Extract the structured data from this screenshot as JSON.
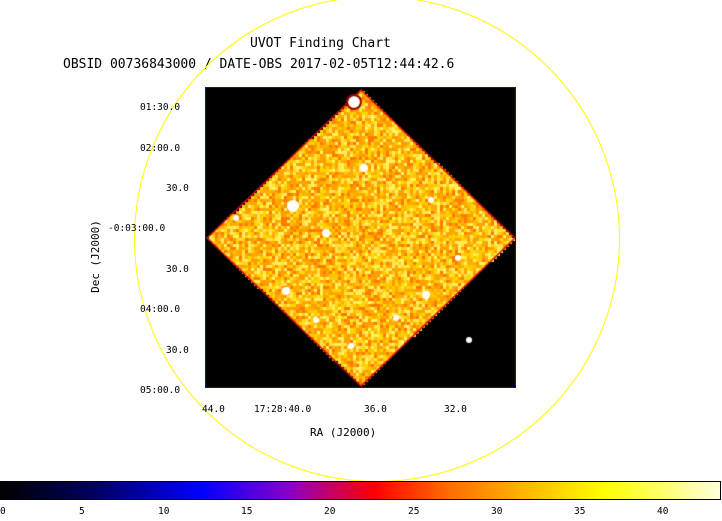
{
  "chart": {
    "title": "UVOT Finding Chart",
    "subtitle": "OBSID 00736843000 / DATE-OBS 2017-02-05T12:44:42.6",
    "xlabel": "RA (J2000)",
    "ylabel": "Dec (J2000)",
    "ra_ticks": [
      "44.0",
      "17:28:40.0",
      "36.0",
      "32.0"
    ],
    "dec_ticks": [
      "01:30.0",
      "02:00.0",
      "30.0",
      "-0:03:00.0",
      "30.0",
      "04:00.0",
      "30.0",
      "05:00.0"
    ],
    "colorbar_ticks": [
      "0",
      "5",
      "10",
      "15",
      "20",
      "25",
      "30",
      "35",
      "40"
    ],
    "colorbar_range": [
      0,
      43
    ],
    "colormap_colors": [
      "#000000",
      "#0000ff",
      "#ff0000",
      "#ffff00",
      "#ffffff"
    ],
    "ring_color": "#ffff00",
    "frame_color": "#0000ff"
  }
}
